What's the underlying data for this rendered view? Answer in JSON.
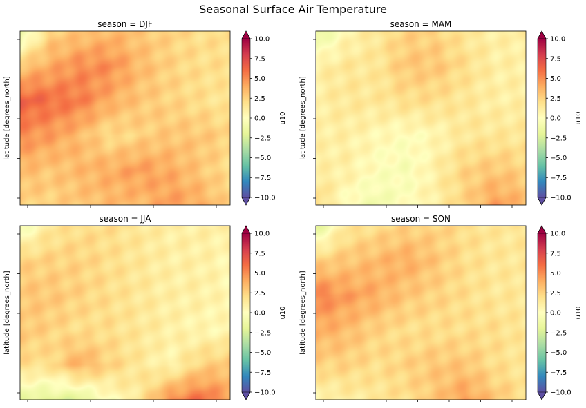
{
  "figure": {
    "title": "Seasonal Surface Air Temperature"
  },
  "colorbar": {
    "label": "u10",
    "ticks": [
      "10.0",
      "7.5",
      "5.0",
      "2.5",
      "0.0",
      "−2.5",
      "−5.0",
      "−7.5",
      "−10.0"
    ],
    "colors": [
      "#5e4fa2",
      "#3288bd",
      "#66c2a5",
      "#abdda4",
      "#e6f598",
      "#ffffbf",
      "#fee08b",
      "#fdae61",
      "#f46d43",
      "#d53e4f",
      "#9e0142"
    ]
  },
  "chart_data": [
    {
      "type": "heatmap",
      "title": "season = DJF",
      "ylabel": "latitude [degrees_north]",
      "xlabel": "",
      "colorbar_label": "u10",
      "clim": [
        -10,
        10
      ],
      "extend": "both",
      "colormap": "Spectral_r",
      "grid_values": [
        [
          -2.0,
          2.5,
          3.0,
          3.5,
          3.0,
          2.5,
          2.0,
          2.0
        ],
        [
          3.0,
          4.0,
          5.0,
          5.0,
          3.5,
          2.5,
          2.0,
          2.0
        ],
        [
          6.5,
          6.0,
          5.5,
          4.0,
          3.0,
          2.5,
          2.0,
          1.5
        ],
        [
          5.0,
          4.5,
          3.5,
          2.0,
          2.5,
          3.0,
          3.0,
          2.5
        ],
        [
          3.5,
          3.0,
          3.5,
          4.0,
          4.5,
          4.0,
          3.0,
          2.0
        ],
        [
          2.5,
          2.5,
          3.0,
          3.5,
          3.5,
          4.5,
          4.0,
          2.5
        ]
      ]
    },
    {
      "type": "heatmap",
      "title": "season = MAM",
      "ylabel": "latitude [degrees_north]",
      "xlabel": "",
      "colorbar_label": "u10",
      "clim": [
        -10,
        10
      ],
      "extend": "both",
      "colormap": "Spectral_r",
      "grid_values": [
        [
          -2.0,
          0.5,
          1.5,
          2.5,
          2.5,
          1.5,
          1.0,
          1.0
        ],
        [
          1.0,
          1.5,
          1.5,
          3.0,
          3.0,
          2.0,
          1.0,
          1.0
        ],
        [
          1.0,
          1.5,
          1.5,
          2.0,
          2.0,
          1.5,
          1.0,
          1.0
        ],
        [
          1.0,
          1.0,
          0.5,
          0.0,
          0.5,
          1.5,
          1.5,
          1.5
        ],
        [
          1.0,
          1.0,
          0.0,
          -0.5,
          1.0,
          2.5,
          3.0,
          2.5
        ],
        [
          2.5,
          0.0,
          -1.0,
          0.0,
          1.0,
          2.5,
          4.5,
          3.5
        ]
      ]
    },
    {
      "type": "heatmap",
      "title": "season = JJA",
      "ylabel": "latitude [degrees_north]",
      "xlabel": "",
      "colorbar_label": "u10",
      "clim": [
        -10,
        10
      ],
      "extend": "both",
      "colormap": "Spectral_r",
      "grid_values": [
        [
          -1.0,
          1.5,
          2.0,
          2.0,
          1.5,
          1.0,
          1.0,
          1.0
        ],
        [
          2.5,
          2.5,
          2.5,
          2.0,
          1.5,
          1.0,
          1.0,
          0.5
        ],
        [
          3.0,
          3.0,
          2.5,
          2.0,
          1.5,
          1.0,
          1.0,
          0.5
        ],
        [
          3.0,
          2.5,
          2.0,
          2.0,
          1.5,
          1.0,
          0.5,
          0.5
        ],
        [
          2.0,
          2.0,
          4.0,
          2.5,
          1.5,
          0.5,
          2.5,
          3.0
        ],
        [
          -1.5,
          -2.0,
          -2.0,
          0.0,
          1.5,
          5.0,
          6.0,
          4.5
        ]
      ]
    },
    {
      "type": "heatmap",
      "title": "season = SON",
      "ylabel": "latitude [degrees_north]",
      "xlabel": "",
      "colorbar_label": "u10",
      "clim": [
        -10,
        10
      ],
      "extend": "both",
      "colormap": "Spectral_r",
      "grid_values": [
        [
          -2.0,
          1.5,
          2.0,
          2.5,
          2.5,
          2.0,
          1.5,
          1.5
        ],
        [
          2.5,
          3.0,
          3.5,
          4.0,
          3.0,
          2.0,
          1.5,
          1.5
        ],
        [
          5.5,
          4.5,
          4.0,
          3.0,
          2.5,
          2.0,
          1.5,
          1.5
        ],
        [
          4.0,
          3.5,
          2.5,
          2.0,
          2.0,
          2.0,
          2.0,
          1.5
        ],
        [
          2.5,
          2.5,
          2.0,
          2.5,
          3.0,
          3.0,
          2.0,
          1.5
        ],
        [
          0.5,
          1.0,
          1.5,
          2.0,
          3.0,
          4.5,
          3.0,
          2.0
        ]
      ]
    }
  ]
}
